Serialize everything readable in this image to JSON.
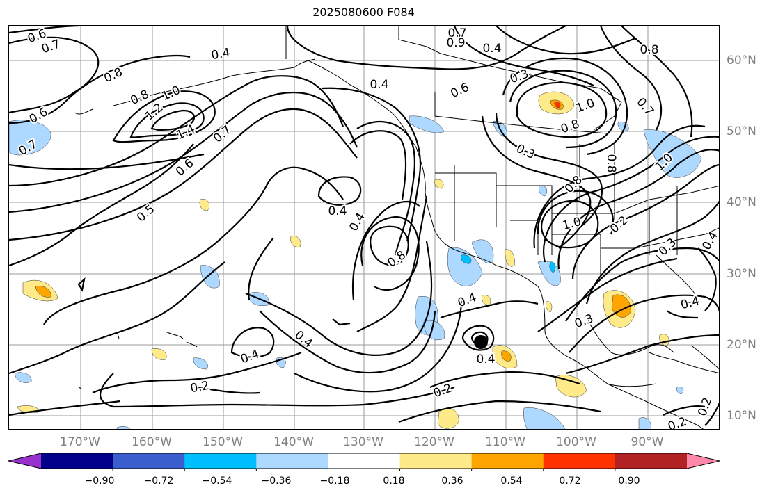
{
  "title": "2025080600 F084",
  "map": {
    "lon_labels": [
      "170°W",
      "160°W",
      "150°W",
      "140°W",
      "130°W",
      "120°W",
      "110°W",
      "100°W",
      "90°W"
    ],
    "lat_labels": [
      "60°N",
      "50°N",
      "40°N",
      "30°N",
      "20°N",
      "10°N"
    ],
    "contour_labels": [
      {
        "text": "0.6",
        "style": "a"
      },
      {
        "text": "0.7",
        "style": "a"
      },
      {
        "text": "0.8",
        "style": "a"
      },
      {
        "text": "0.8",
        "style": "a"
      },
      {
        "text": "1.0",
        "style": "a"
      },
      {
        "text": "1.2",
        "style": "a"
      },
      {
        "text": "1.4",
        "style": "a"
      },
      {
        "text": "0.6",
        "style": "a"
      },
      {
        "text": "0.5",
        "style": "a"
      },
      {
        "text": "0.7",
        "style": "a"
      },
      {
        "text": "0.7",
        "style": "a"
      },
      {
        "text": "0.6",
        "style": "a"
      },
      {
        "text": "0.4",
        "style": "a"
      },
      {
        "text": "0.4",
        "style": "a"
      },
      {
        "text": "0.4",
        "style": "a"
      },
      {
        "text": "0.7",
        "style": "a"
      },
      {
        "text": "0.9",
        "style": "a"
      },
      {
        "text": "0.4",
        "style": "a"
      },
      {
        "text": "0.6",
        "style": "a"
      },
      {
        "text": "0.3",
        "style": "a"
      },
      {
        "text": "0.8",
        "style": "a"
      },
      {
        "text": "0.7",
        "style": "a"
      },
      {
        "text": "1.0",
        "style": "a"
      },
      {
        "text": "0.3",
        "style": "a"
      },
      {
        "text": "0.8",
        "style": "a"
      },
      {
        "text": "0.8",
        "style": "a"
      },
      {
        "text": "1.0",
        "style": "a"
      },
      {
        "text": "1.0",
        "style": "a"
      },
      {
        "text": "0.8",
        "style": "a"
      },
      {
        "text": "0.2",
        "style": "a"
      },
      {
        "text": "0.3",
        "style": "a"
      },
      {
        "text": "0.4",
        "style": "a"
      },
      {
        "text": "0.4",
        "style": "a"
      },
      {
        "text": "0.3",
        "style": "a"
      },
      {
        "text": "0.4",
        "style": "a"
      },
      {
        "text": "0.4",
        "style": "a"
      },
      {
        "text": "0.4",
        "style": "a"
      },
      {
        "text": "0.4",
        "style": "a"
      },
      {
        "text": "0.2",
        "style": "a"
      },
      {
        "text": "0.2",
        "style": "a"
      },
      {
        "text": "0.2",
        "style": "a"
      },
      {
        "text": "0.2",
        "style": "a"
      },
      {
        "text": "0.8",
        "style": "a"
      },
      {
        "text": "0.4",
        "style": "a"
      }
    ]
  },
  "colorbar": {
    "labels": [
      "−0.90",
      "−0.72",
      "−0.54",
      "−0.36",
      "−0.18",
      "0.18",
      "0.36",
      "0.54",
      "0.72",
      "0.90"
    ],
    "colors": [
      "#9932cc",
      "#00008b",
      "#3a5fcd",
      "#00bfff",
      "#add8ff",
      "#ffffff",
      "#ffea8a",
      "#ffa500",
      "#ff3300",
      "#b22222",
      "#ff88aa"
    ]
  }
}
